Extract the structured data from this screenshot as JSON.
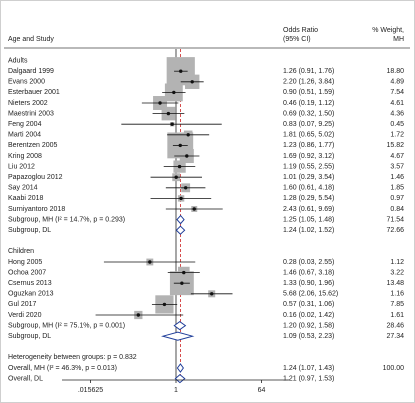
{
  "chart_data": {
    "type": "forest",
    "header": {
      "study": "Age and Study",
      "ci": [
        "Odds Ratio",
        "(95% CI)"
      ],
      "weight": [
        "% Weight,",
        "MH"
      ]
    },
    "log_scale": true,
    "xlim": [
      0.00390625,
      256
    ],
    "xticks": [
      {
        "value": 0.015625,
        "label": ".015625"
      },
      1,
      64
    ],
    "box_color": "#b3b3b3",
    "diamond_color": "#1f3d99",
    "reference_color": "#cc2222",
    "groups": [
      {
        "name": "Adults",
        "studies": [
          {
            "study": "Dalgaard 1999",
            "or": 1.26,
            "lo": 0.91,
            "hi": 1.76,
            "ci_label": "1.26 (0.91, 1.76)",
            "weight": 18.8,
            "weight_label": "18.80"
          },
          {
            "study": "Evans 2000",
            "or": 2.2,
            "lo": 1.26,
            "hi": 3.84,
            "ci_label": "2.20 (1.26, 3.84)",
            "weight": 4.89,
            "weight_label": "4.89"
          },
          {
            "study": "Esterbauer 2001",
            "or": 0.9,
            "lo": 0.51,
            "hi": 1.59,
            "ci_label": "0.90 (0.51, 1.59)",
            "weight": 7.54,
            "weight_label": "7.54"
          },
          {
            "study": "Nieters 2002",
            "or": 0.46,
            "lo": 0.19,
            "hi": 1.12,
            "ci_label": "0.46 (0.19, 1.12)",
            "weight": 4.61,
            "weight_label": "4.61"
          },
          {
            "study": "Maestrini 2003",
            "or": 0.69,
            "lo": 0.32,
            "hi": 1.5,
            "ci_label": "0.69 (0.32, 1.50)",
            "weight": 4.36,
            "weight_label": "4.36"
          },
          {
            "study": "Feng 2004",
            "or": 0.83,
            "lo": 0.07,
            "hi": 9.25,
            "ci_label": "0.83 (0.07, 9.25)",
            "weight": 0.45,
            "weight_label": "0.45"
          },
          {
            "study": "Marti 2004",
            "or": 1.81,
            "lo": 0.65,
            "hi": 5.02,
            "ci_label": "1.81 (0.65, 5.02)",
            "weight": 1.72,
            "weight_label": "1.72"
          },
          {
            "study": "Berentzen 2005",
            "or": 1.23,
            "lo": 0.86,
            "hi": 1.77,
            "ci_label": "1.23 (0.86, 1.77)",
            "weight": 15.82,
            "weight_label": "15.82"
          },
          {
            "study": "Kring 2008",
            "or": 1.69,
            "lo": 0.92,
            "hi": 3.12,
            "ci_label": "1.69 (0.92, 3.12)",
            "weight": 4.67,
            "weight_label": "4.67"
          },
          {
            "study": "Liu 2012",
            "or": 1.19,
            "lo": 0.55,
            "hi": 2.55,
            "ci_label": "1.19 (0.55, 2.55)",
            "weight": 3.57,
            "weight_label": "3.57"
          },
          {
            "study": "Papazoglou 2012",
            "or": 1.01,
            "lo": 0.29,
            "hi": 3.54,
            "ci_label": "1.01 (0.29, 3.54)",
            "weight": 1.46,
            "weight_label": "1.46"
          },
          {
            "study": "Say 2014",
            "or": 1.6,
            "lo": 0.61,
            "hi": 4.18,
            "ci_label": "1.60 (0.61, 4.18)",
            "weight": 1.85,
            "weight_label": "1.85"
          },
          {
            "study": "Kaabi 2018",
            "or": 1.28,
            "lo": 0.29,
            "hi": 5.54,
            "ci_label": "1.28 (0.29, 5.54)",
            "weight": 0.97,
            "weight_label": "0.97"
          },
          {
            "study": "Surniyantoro 2018",
            "or": 2.43,
            "lo": 0.61,
            "hi": 9.69,
            "ci_label": "2.43 (0.61, 9.69)",
            "weight": 0.84,
            "weight_label": "0.84"
          }
        ],
        "subgroups": [
          {
            "label": "Subgroup, MH (I² = 14.7%, p = 0.293)",
            "or": 1.25,
            "lo": 1.05,
            "hi": 1.48,
            "ci_label": "1.25 (1.05, 1.48)",
            "weight": 71.54,
            "weight_label": "71.54"
          },
          {
            "label": "Subgroup, DL",
            "or": 1.24,
            "lo": 1.02,
            "hi": 1.52,
            "ci_label": "1.24 (1.02, 1.52)",
            "weight": 72.66,
            "weight_label": "72.66"
          }
        ]
      },
      {
        "name": "Children",
        "studies": [
          {
            "study": "Hong 2005",
            "or": 0.28,
            "lo": 0.03,
            "hi": 2.55,
            "ci_label": "0.28 (0.03, 2.55)",
            "weight": 1.12,
            "weight_label": "1.12"
          },
          {
            "study": "Ochoa 2007",
            "or": 1.46,
            "lo": 0.67,
            "hi": 3.18,
            "ci_label": "1.46 (0.67, 3.18)",
            "weight": 3.22,
            "weight_label": "3.22"
          },
          {
            "study": "Csernus 2013",
            "or": 1.33,
            "lo": 0.9,
            "hi": 1.96,
            "ci_label": "1.33 (0.90, 1.96)",
            "weight": 13.48,
            "weight_label": "13.48"
          },
          {
            "study": "Oguzkan 2013",
            "or": 5.68,
            "lo": 2.06,
            "hi": 15.62,
            "ci_label": "5.68 (2.06, 15.62)",
            "weight": 1.16,
            "weight_label": "1.16"
          },
          {
            "study": "Gul 2017",
            "or": 0.57,
            "lo": 0.31,
            "hi": 1.06,
            "ci_label": "0.57 (0.31, 1.06)",
            "weight": 7.85,
            "weight_label": "7.85"
          },
          {
            "study": "Verdi 2020",
            "or": 0.16,
            "lo": 0.02,
            "hi": 1.42,
            "ci_label": "0.16 (0.02, 1.42)",
            "weight": 1.61,
            "weight_label": "1.61"
          }
        ],
        "subgroups": [
          {
            "label": "Subgroup, MH (I² = 75.1%, p = 0.001)",
            "or": 1.2,
            "lo": 0.92,
            "hi": 1.58,
            "ci_label": "1.20 (0.92, 1.58)",
            "weight": 28.46,
            "weight_label": "28.46"
          },
          {
            "label": "Subgroup, DL",
            "or": 1.09,
            "lo": 0.53,
            "hi": 2.23,
            "ci_label": "1.09 (0.53, 2.23)",
            "weight": 27.34,
            "weight_label": "27.34"
          }
        ]
      }
    ],
    "heterogeneity": "Heterogeneity between groups: p = 0.832",
    "overall": [
      {
        "label": "Overall, MH (I² = 46.3%, p = 0.013)",
        "or": 1.24,
        "lo": 1.07,
        "hi": 1.43,
        "ci_label": "1.24 (1.07, 1.43)",
        "weight": 100,
        "weight_label": "100.00"
      },
      {
        "label": "Overall, DL",
        "or": 1.21,
        "lo": 0.97,
        "hi": 1.53,
        "ci_label": "1.21 (0.97, 1.53)"
      }
    ]
  }
}
